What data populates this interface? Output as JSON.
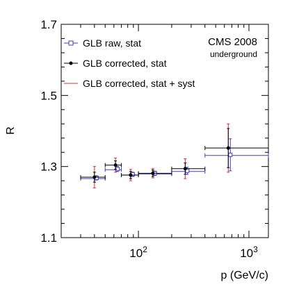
{
  "chart_data": {
    "type": "scatter",
    "title": "",
    "xlabel": "p (GeV/c)",
    "ylabel": "R",
    "xscale": "log",
    "xlim": [
      20,
      1500
    ],
    "ylim": [
      1.1,
      1.7
    ],
    "grid": false,
    "y_ticks": [
      {
        "value": 1.1,
        "label": "1.1"
      },
      {
        "value": 1.3,
        "label": "1.3"
      },
      {
        "value": 1.5,
        "label": "1.5"
      },
      {
        "value": 1.7,
        "label": "1.7"
      }
    ],
    "x_ticks": [
      {
        "value": 100,
        "base": "10",
        "exp": "2"
      },
      {
        "value": 1000,
        "base": "10",
        "exp": "3"
      }
    ],
    "annotations": [
      "CMS 2008",
      "underground"
    ],
    "legend_position": "top-left",
    "series": [
      {
        "name": "GLB raw, stat",
        "color": "#3b3bd6",
        "marker": "open-square",
        "points": [
          {
            "x": 40,
            "xlo": 30,
            "xhi": 50,
            "y": 1.268,
            "err": 0.006
          },
          {
            "x": 62,
            "xlo": 50,
            "xhi": 70,
            "y": 1.293,
            "err": 0.007
          },
          {
            "x": 85,
            "xlo": 70,
            "xhi": 100,
            "y": 1.278,
            "err": 0.006
          },
          {
            "x": 135,
            "xlo": 100,
            "xhi": 200,
            "y": 1.281,
            "err": 0.006
          },
          {
            "x": 265,
            "xlo": 200,
            "xhi": 400,
            "y": 1.288,
            "err": 0.01
          },
          {
            "x": 650,
            "xlo": 400,
            "xhi": 1500,
            "y": 1.333,
            "err": 0.045
          }
        ]
      },
      {
        "name": "GLB corrected, stat",
        "color": "#000000",
        "marker": "filled-circle",
        "points": [
          {
            "x": 40,
            "xlo": 30,
            "xhi": 50,
            "y": 1.27,
            "err": 0.014
          },
          {
            "x": 62,
            "xlo": 50,
            "xhi": 70,
            "y": 1.304,
            "err": 0.012
          },
          {
            "x": 85,
            "xlo": 70,
            "xhi": 100,
            "y": 1.276,
            "err": 0.01
          },
          {
            "x": 135,
            "xlo": 100,
            "xhi": 200,
            "y": 1.281,
            "err": 0.009
          },
          {
            "x": 265,
            "xlo": 200,
            "xhi": 400,
            "y": 1.294,
            "err": 0.016
          },
          {
            "x": 650,
            "xlo": 400,
            "xhi": 1500,
            "y": 1.352,
            "err": 0.055
          }
        ]
      },
      {
        "name": "GLB corrected, stat + syst",
        "color": "#d03030",
        "marker": "none",
        "points": [
          {
            "x": 40,
            "y": 1.27,
            "err": 0.03
          },
          {
            "x": 62,
            "y": 1.304,
            "err": 0.02
          },
          {
            "x": 85,
            "y": 1.276,
            "err": 0.016
          },
          {
            "x": 135,
            "y": 1.281,
            "err": 0.013
          },
          {
            "x": 265,
            "y": 1.294,
            "err": 0.028
          },
          {
            "x": 650,
            "y": 1.352,
            "err": 0.068
          }
        ]
      }
    ]
  }
}
